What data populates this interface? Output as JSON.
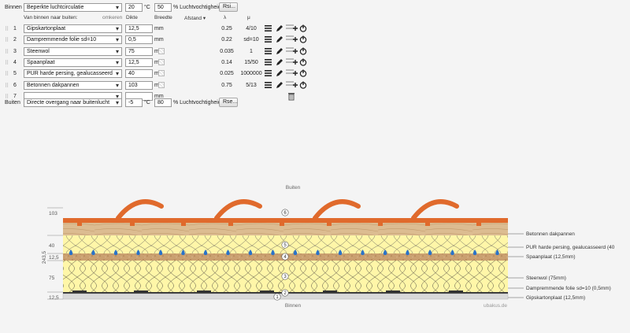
{
  "inside": {
    "label": "Binnen",
    "condition": "Beperkte luchtcirculatie",
    "temperature": "20",
    "temp_unit": "°C",
    "humidity": "50",
    "humidity_unit": "% Luchtvochtigheid",
    "rsi_button": "Rsi..."
  },
  "header": {
    "direction": "Van binnen naar buiten:",
    "reverse": "omkeren",
    "thickness": "Dikte",
    "width": "Breedte",
    "spacing": "Afstand",
    "lambda": "λ",
    "mu": "μ"
  },
  "layers": [
    {
      "num": "1",
      "material": "Gipskartonplaat",
      "thickness": "12,5",
      "unit": "mm",
      "lambda": "0.25",
      "mu": "4/10",
      "texture": false
    },
    {
      "num": "2",
      "material": "Dampremmende folie sd=10",
      "thickness": "0,5",
      "unit": "mm",
      "lambda": "0.22",
      "mu": "sd=10",
      "texture": false
    },
    {
      "num": "3",
      "material": "Steenwol",
      "thickness": "75",
      "unit": "mm",
      "lambda": "0.035",
      "mu": "1",
      "texture": true
    },
    {
      "num": "4",
      "material": "Spaanplaat",
      "thickness": "12,5",
      "unit": "mm",
      "lambda": "0.14",
      "mu": "15/50",
      "texture": true
    },
    {
      "num": "5",
      "material": "PUR harde persing, gealucasseerd",
      "thickness": "40",
      "unit": "mm",
      "lambda": "0.025",
      "mu": "1000000",
      "texture": true
    },
    {
      "num": "6",
      "material": "Betonnen dakpannen",
      "thickness": "103",
      "unit": "mm",
      "lambda": "0.75",
      "mu": "5/13",
      "texture": true
    },
    {
      "num": "7",
      "material": "",
      "thickness": "",
      "unit": "mm",
      "lambda": "",
      "mu": "",
      "texture": false
    }
  ],
  "outside": {
    "label": "Buiten",
    "condition": "Directe overgang naar buitenlucht",
    "temperature": "-5",
    "temp_unit": "°C",
    "humidity": "80",
    "humidity_unit": "% Luchtvochtigheid",
    "rse_button": "Rse..."
  },
  "diagram": {
    "top_label": "Buiten",
    "bottom_label": "Binnen",
    "watermark": "ubakus.de",
    "total": "243,5",
    "dims": [
      "103",
      "40",
      "12,5",
      "75",
      "12,5"
    ],
    "callouts": [
      "Betonnen dakpannen",
      "PUR harde persing, gealucasseerd (40",
      "Spaanplaat (12,5mm)",
      "Steenwol (75mm)",
      "Dampremmende folie sd=10 (0,5mm)",
      "Gipskartonplaat (12,5mm)"
    ],
    "markers": [
      "6",
      "5",
      "4",
      "3",
      "2",
      "1"
    ]
  },
  "colors": {
    "tile": "#e06a2c",
    "wood": "#d9b98e",
    "insulation": "#fff6a8",
    "particle": "#c9996a",
    "drop": "#2a72c8",
    "gypsum": "#d9d9d9"
  }
}
